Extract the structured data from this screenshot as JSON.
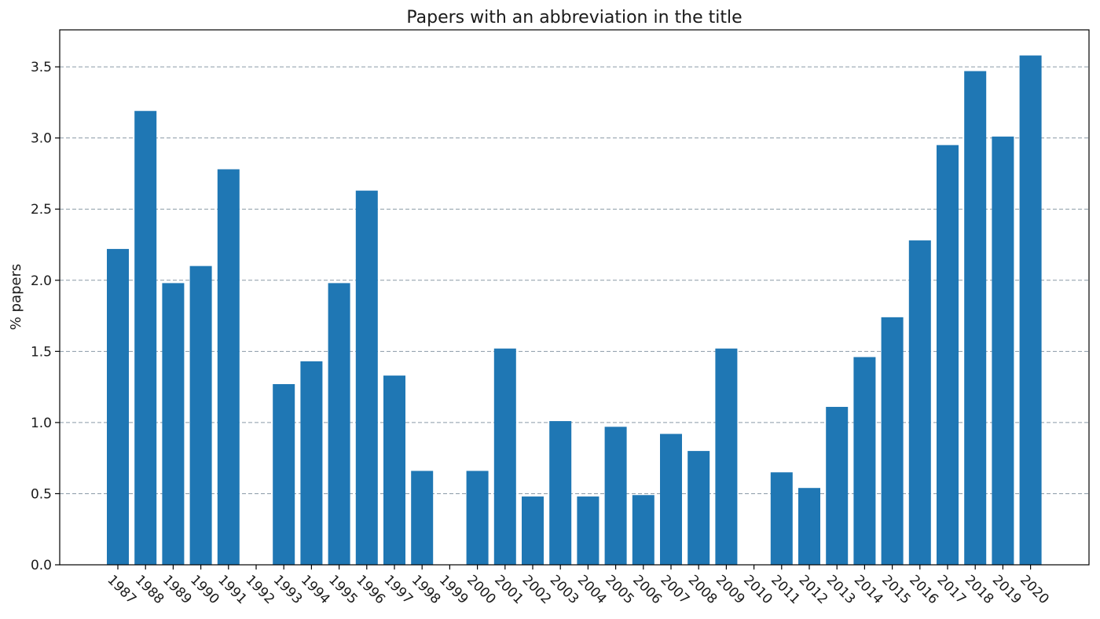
{
  "chart_data": {
    "type": "bar",
    "title": "Papers with an abbreviation in the title",
    "xlabel": "",
    "ylabel": "% papers",
    "ylim": [
      0,
      3.76
    ],
    "yticks": [
      "0.0",
      "0.5",
      "1.0",
      "1.5",
      "2.0",
      "2.5",
      "3.0",
      "3.5"
    ],
    "grid": "y-dashed",
    "bar_color": "#1f77b4",
    "categories": [
      "1987",
      "1988",
      "1989",
      "1990",
      "1991",
      "1992",
      "1993",
      "1994",
      "1995",
      "1996",
      "1997",
      "1998",
      "1999",
      "2000",
      "2001",
      "2002",
      "2003",
      "2004",
      "2005",
      "2006",
      "2007",
      "2008",
      "2009",
      "2010",
      "2011",
      "2012",
      "2013",
      "2014",
      "2015",
      "2016",
      "2017",
      "2018",
      "2019",
      "2020"
    ],
    "values": [
      2.22,
      3.19,
      1.98,
      2.1,
      2.78,
      0,
      1.27,
      1.43,
      1.98,
      2.63,
      1.33,
      0.66,
      0,
      0.66,
      1.52,
      0.48,
      1.01,
      0.48,
      0.97,
      0.49,
      0.92,
      0.8,
      1.52,
      0,
      0.65,
      0.54,
      1.11,
      1.46,
      1.74,
      2.28,
      2.95,
      3.47,
      3.01,
      3.58
    ]
  }
}
